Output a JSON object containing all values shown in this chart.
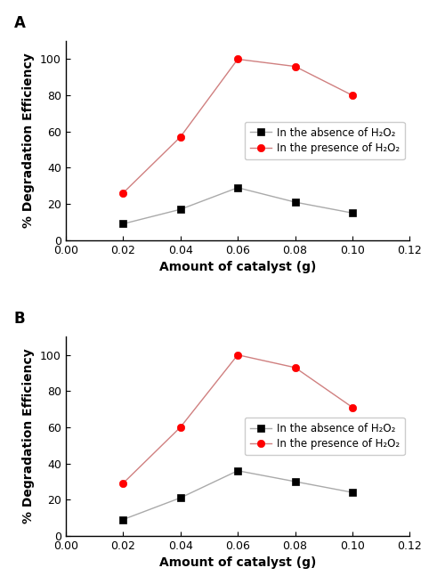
{
  "x": [
    0.02,
    0.04,
    0.06,
    0.08,
    0.1
  ],
  "panel_A": {
    "label": "A",
    "absence": [
      9,
      17,
      29,
      21,
      15
    ],
    "presence": [
      26,
      57,
      100,
      96,
      80
    ]
  },
  "panel_B": {
    "label": "B",
    "absence": [
      9,
      21,
      36,
      30,
      24
    ],
    "presence": [
      29,
      60,
      100,
      93,
      71
    ]
  },
  "xlabel": "Amount of catalyst (g)",
  "ylabel": "% Degradation Efficiency",
  "legend_absence": "In the absence of H₂O₂",
  "legend_presence": "In the presence of H₂O₂",
  "xlim": [
    0.0,
    0.12
  ],
  "ylim": [
    0,
    110
  ],
  "xticks": [
    0.0,
    0.02,
    0.04,
    0.06,
    0.08,
    0.1,
    0.12
  ],
  "yticks": [
    0,
    20,
    40,
    60,
    80,
    100
  ],
  "color_absence_marker": "#000000",
  "color_presence_marker": "#ff0000",
  "line_color_absence": "#aaaaaa",
  "line_color_presence": "#d08080",
  "marker_absence": "s",
  "marker_presence": "o",
  "marker_size": 6,
  "linewidth": 1.0,
  "label_fontsize": 10,
  "tick_fontsize": 9,
  "legend_fontsize": 8.5,
  "panel_label_fontsize": 12
}
